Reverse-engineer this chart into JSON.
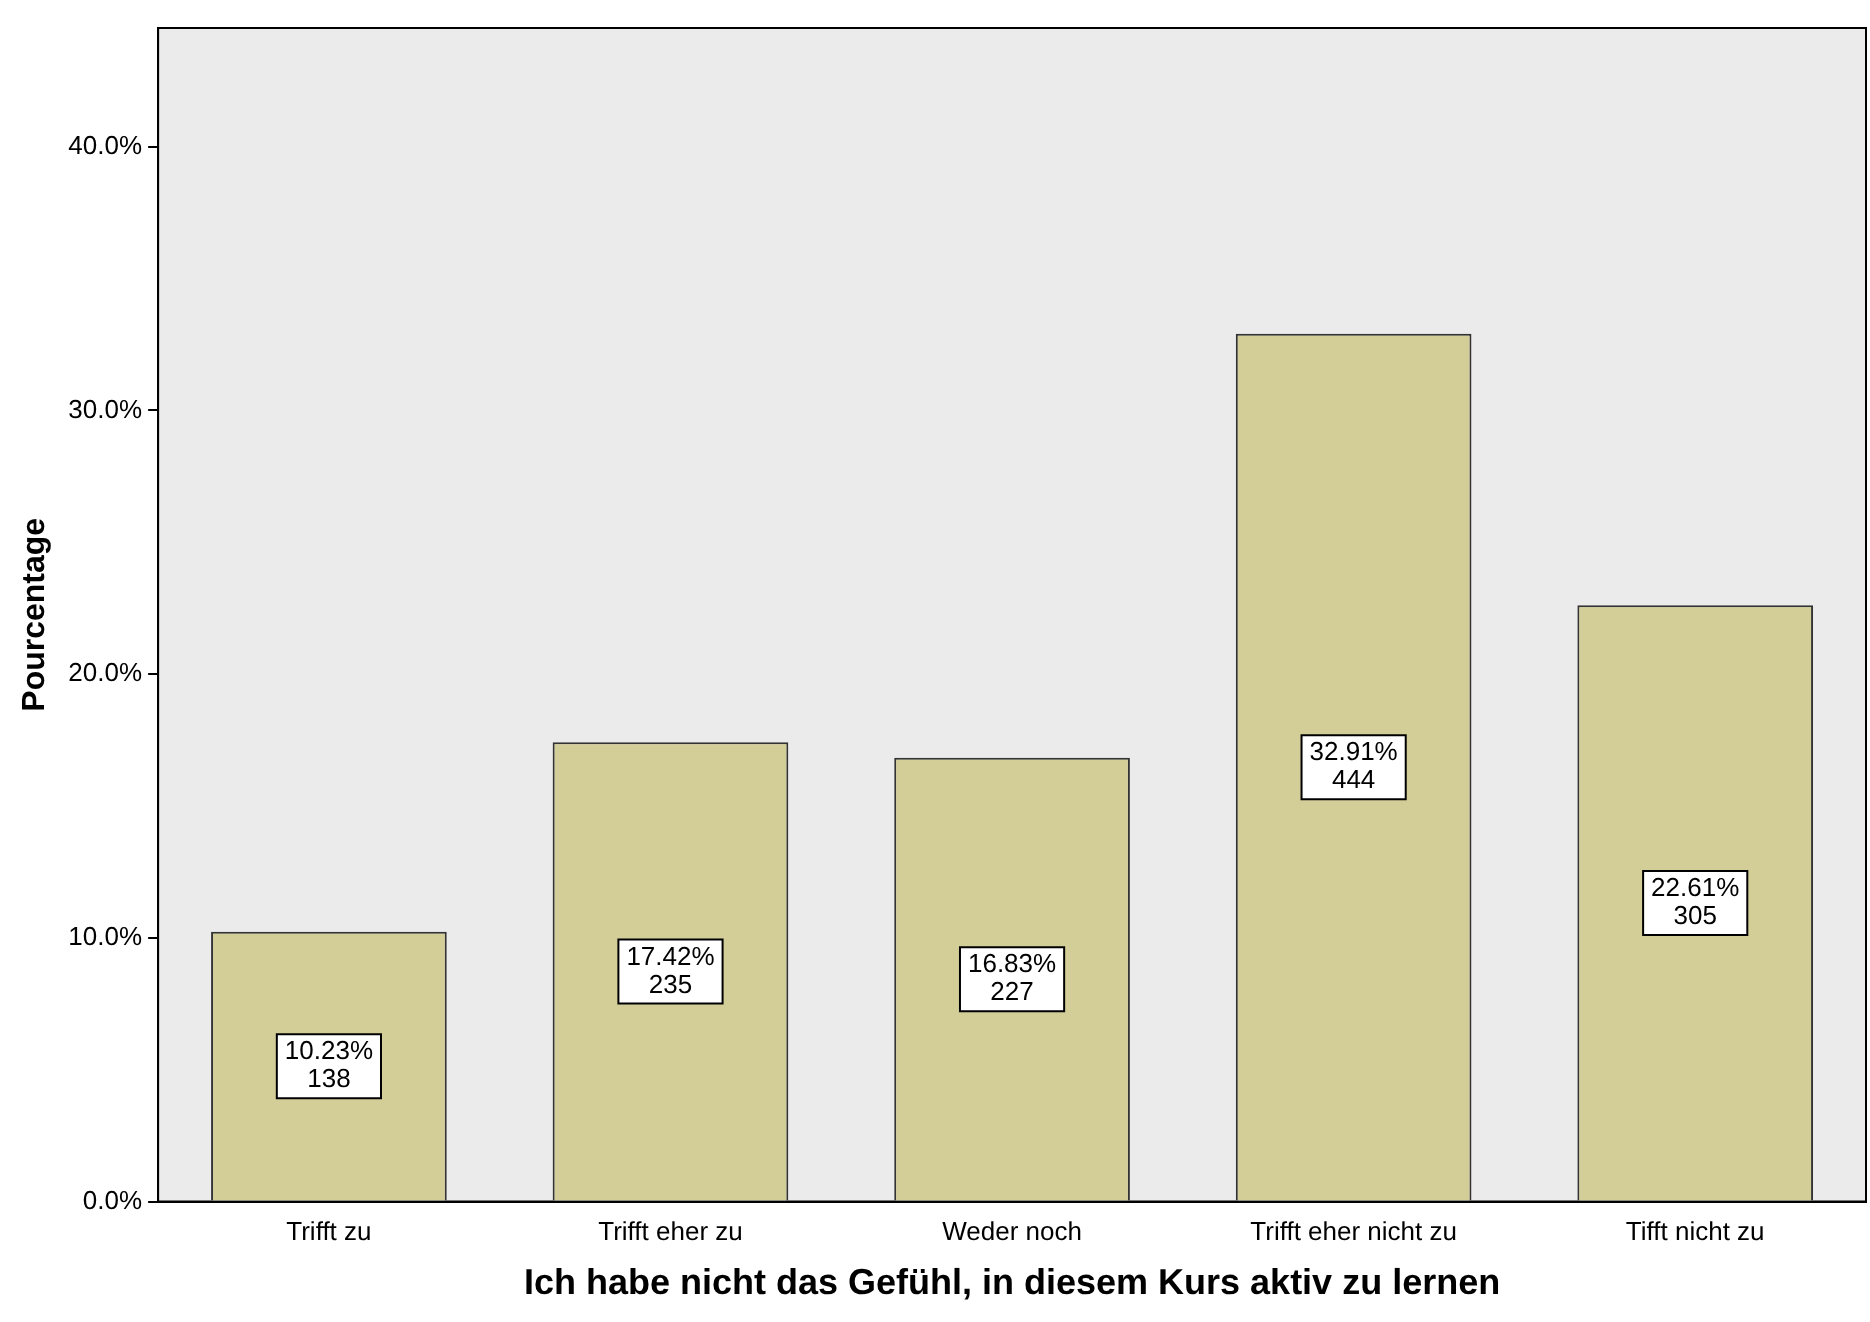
{
  "chart_data": {
    "type": "bar",
    "xlabel": "Ich habe nicht das Gefühl, in diesem Kurs aktiv zu lernen",
    "ylabel": "Pourcentage",
    "categories": [
      "Trifft zu",
      "Trifft eher zu",
      "Weder noch",
      "Trifft eher nicht zu",
      "Tifft nicht zu"
    ],
    "values": [
      10.23,
      17.42,
      16.83,
      32.91,
      22.61
    ],
    "value_labels": [
      "10.23%\n138",
      "17.42%\n235",
      "16.83%\n227",
      "32.91%\n444",
      "22.61%\n305"
    ],
    "color": "#d3ce98",
    "ylim": [
      0,
      44.5
    ],
    "yticks": [
      {
        "value": 0,
        "label": "0.0%"
      },
      {
        "value": 10,
        "label": "10.0%"
      },
      {
        "value": 20,
        "label": "20.0%"
      },
      {
        "value": 30,
        "label": "30.0%"
      },
      {
        "value": 40,
        "label": "40.0%"
      }
    ],
    "grid": false,
    "legend": false
  }
}
